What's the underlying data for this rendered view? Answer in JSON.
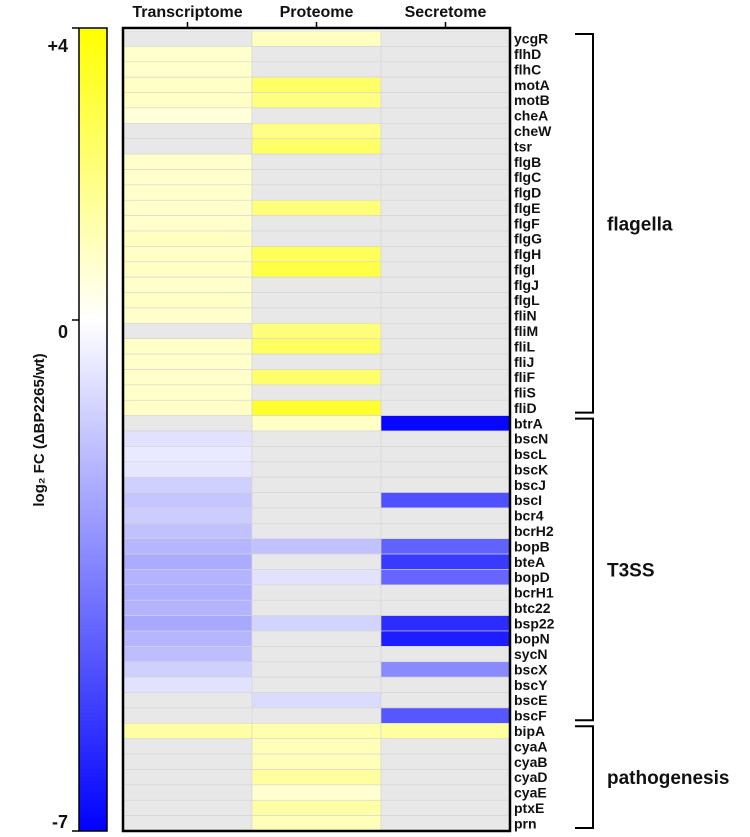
{
  "chart_data": {
    "type": "heatmap",
    "columns": [
      "Transcriptome",
      "Proteome",
      "Secretome"
    ],
    "rows": [
      "ycgR",
      "flhD",
      "flhC",
      "motA",
      "motB",
      "cheA",
      "cheW",
      "tsr",
      "flgB",
      "flgC",
      "flgD",
      "flgE",
      "flgF",
      "flgG",
      "flgH",
      "flgI",
      "flgJ",
      "flgL",
      "fliN",
      "fliM",
      "fliL",
      "fliJ",
      "fliF",
      "fliS",
      "fliD",
      "btrA",
      "bscN",
      "bscL",
      "bscK",
      "bscJ",
      "bscI",
      "bcr4",
      "bcrH2",
      "bopB",
      "bteA",
      "bopD",
      "bcrH1",
      "btc22",
      "bsp22",
      "bopN",
      "sycN",
      "bscX",
      "bscY",
      "bscE",
      "bscF",
      "bipA",
      "cyaA",
      "cyaB",
      "cyaD",
      "cyaE",
      "ptxE",
      "prn"
    ],
    "values": [
      [
        null,
        1.0,
        null
      ],
      [
        0.8,
        null,
        null
      ],
      [
        0.8,
        null,
        null
      ],
      [
        0.9,
        2.4,
        null
      ],
      [
        0.9,
        2.0,
        null
      ],
      [
        0.6,
        null,
        null
      ],
      [
        null,
        1.9,
        null
      ],
      [
        null,
        2.4,
        null
      ],
      [
        0.8,
        null,
        null
      ],
      [
        0.8,
        null,
        null
      ],
      [
        0.8,
        null,
        null
      ],
      [
        0.8,
        2.1,
        null
      ],
      [
        0.8,
        null,
        null
      ],
      [
        1.0,
        null,
        null
      ],
      [
        0.9,
        2.6,
        null
      ],
      [
        0.9,
        2.9,
        null
      ],
      [
        0.8,
        null,
        null
      ],
      [
        0.9,
        null,
        null
      ],
      [
        0.8,
        null,
        null
      ],
      [
        null,
        2.1,
        null
      ],
      [
        0.9,
        2.5,
        null
      ],
      [
        0.8,
        null,
        null
      ],
      [
        0.8,
        2.3,
        null
      ],
      [
        0.8,
        null,
        null
      ],
      [
        0.9,
        3.3,
        null
      ],
      [
        null,
        0.9,
        -6.8
      ],
      [
        -0.8,
        null,
        null
      ],
      [
        -0.6,
        null,
        null
      ],
      [
        -0.7,
        null,
        null
      ],
      [
        -1.3,
        null,
        null
      ],
      [
        -1.6,
        null,
        -4.8
      ],
      [
        -1.4,
        null,
        null
      ],
      [
        -1.7,
        null,
        null
      ],
      [
        -2.0,
        -1.7,
        -4.3
      ],
      [
        -2.3,
        null,
        -5.4
      ],
      [
        -2.1,
        -0.8,
        -4.2
      ],
      [
        -2.2,
        null,
        null
      ],
      [
        -2.1,
        null,
        null
      ],
      [
        -2.4,
        -1.2,
        -5.8
      ],
      [
        -2.0,
        null,
        -6.2
      ],
      [
        -1.8,
        null,
        null
      ],
      [
        -1.3,
        null,
        -3.2
      ],
      [
        -0.8,
        null,
        null
      ],
      [
        null,
        -1.0,
        null
      ],
      [
        null,
        null,
        -4.6
      ],
      [
        1.4,
        1.3,
        1.5
      ],
      [
        null,
        1.1,
        null
      ],
      [
        null,
        1.1,
        null
      ],
      [
        null,
        1.5,
        null
      ],
      [
        null,
        0.7,
        null
      ],
      [
        null,
        1.4,
        null
      ],
      [
        null,
        1.1,
        null
      ]
    ],
    "missing_color": "#e8e8e8",
    "colorscale": {
      "min": -7,
      "mid": 0,
      "max": 4,
      "min_color": "#0000ff",
      "mid_color": "#ffffff",
      "max_color": "#ffff00"
    },
    "colorbar": {
      "label": "log₂ FC (ΔBP2265/wt)",
      "ticks": [
        "+4",
        "0",
        "-7"
      ]
    },
    "groups": [
      {
        "label": "flagella",
        "from": "ycgR",
        "to": "fliD"
      },
      {
        "label": "T3SS",
        "from": "btrA",
        "to": "bscF"
      },
      {
        "label": "pathogenesis",
        "from": "bipA",
        "to": "prn"
      }
    ]
  }
}
